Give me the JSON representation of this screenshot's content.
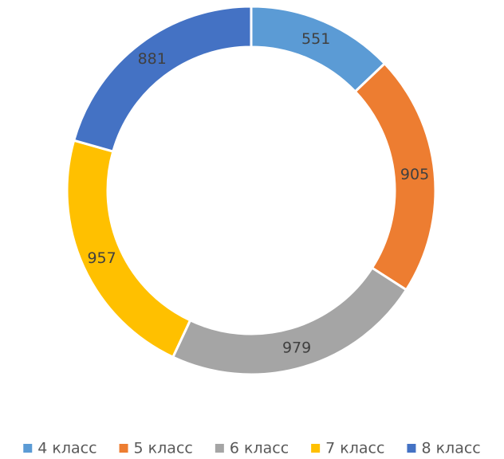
{
  "chart_data": {
    "type": "donut",
    "categories": [
      "4 класс",
      "5 класс",
      "6 класс",
      "7 класс",
      "8 класс"
    ],
    "values": [
      551,
      905,
      979,
      957,
      881
    ],
    "colors": [
      "#5b9bd5",
      "#ed7d31",
      "#a5a5a5",
      "#ffc000",
      "#4472c4"
    ],
    "legend": "bottom"
  }
}
